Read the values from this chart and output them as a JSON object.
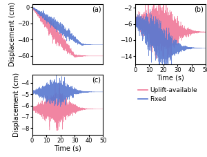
{
  "dt": 0.02,
  "t_end": 50,
  "pink_color": "#f07898",
  "blue_color": "#5878d0",
  "label_uplift": "Uplift-available",
  "label_fixed": "Fixed",
  "panel_labels": [
    "(a)",
    "(b)",
    "(c)"
  ],
  "xlabel": "Time (s)",
  "ylabel": "Displacement (cm)",
  "panel_a": {
    "ylim": [
      -70,
      4
    ],
    "yticks": [
      0,
      -20,
      -40,
      -60
    ],
    "xlim": [
      0,
      50
    ],
    "xticks": [
      0,
      10,
      20,
      30,
      40,
      50
    ]
  },
  "panel_b": {
    "ylim": [
      -16,
      -1
    ],
    "yticks": [
      -2,
      -6,
      -10,
      -14
    ],
    "xlim": [
      0,
      50
    ],
    "xticks": [
      0,
      10,
      20,
      30,
      40,
      50
    ]
  },
  "panel_c": {
    "ylim": [
      -8.6,
      -3.3
    ],
    "yticks": [
      -4,
      -5,
      -6,
      -7,
      -8
    ],
    "xlim": [
      0,
      50
    ],
    "xticks": [
      0,
      10,
      20,
      30,
      40,
      50
    ]
  },
  "title_fontsize": 7,
  "tick_fontsize": 6,
  "label_fontsize": 7,
  "legend_fontsize": 6.5,
  "line_alpha": 0.9,
  "line_width": 0.35
}
